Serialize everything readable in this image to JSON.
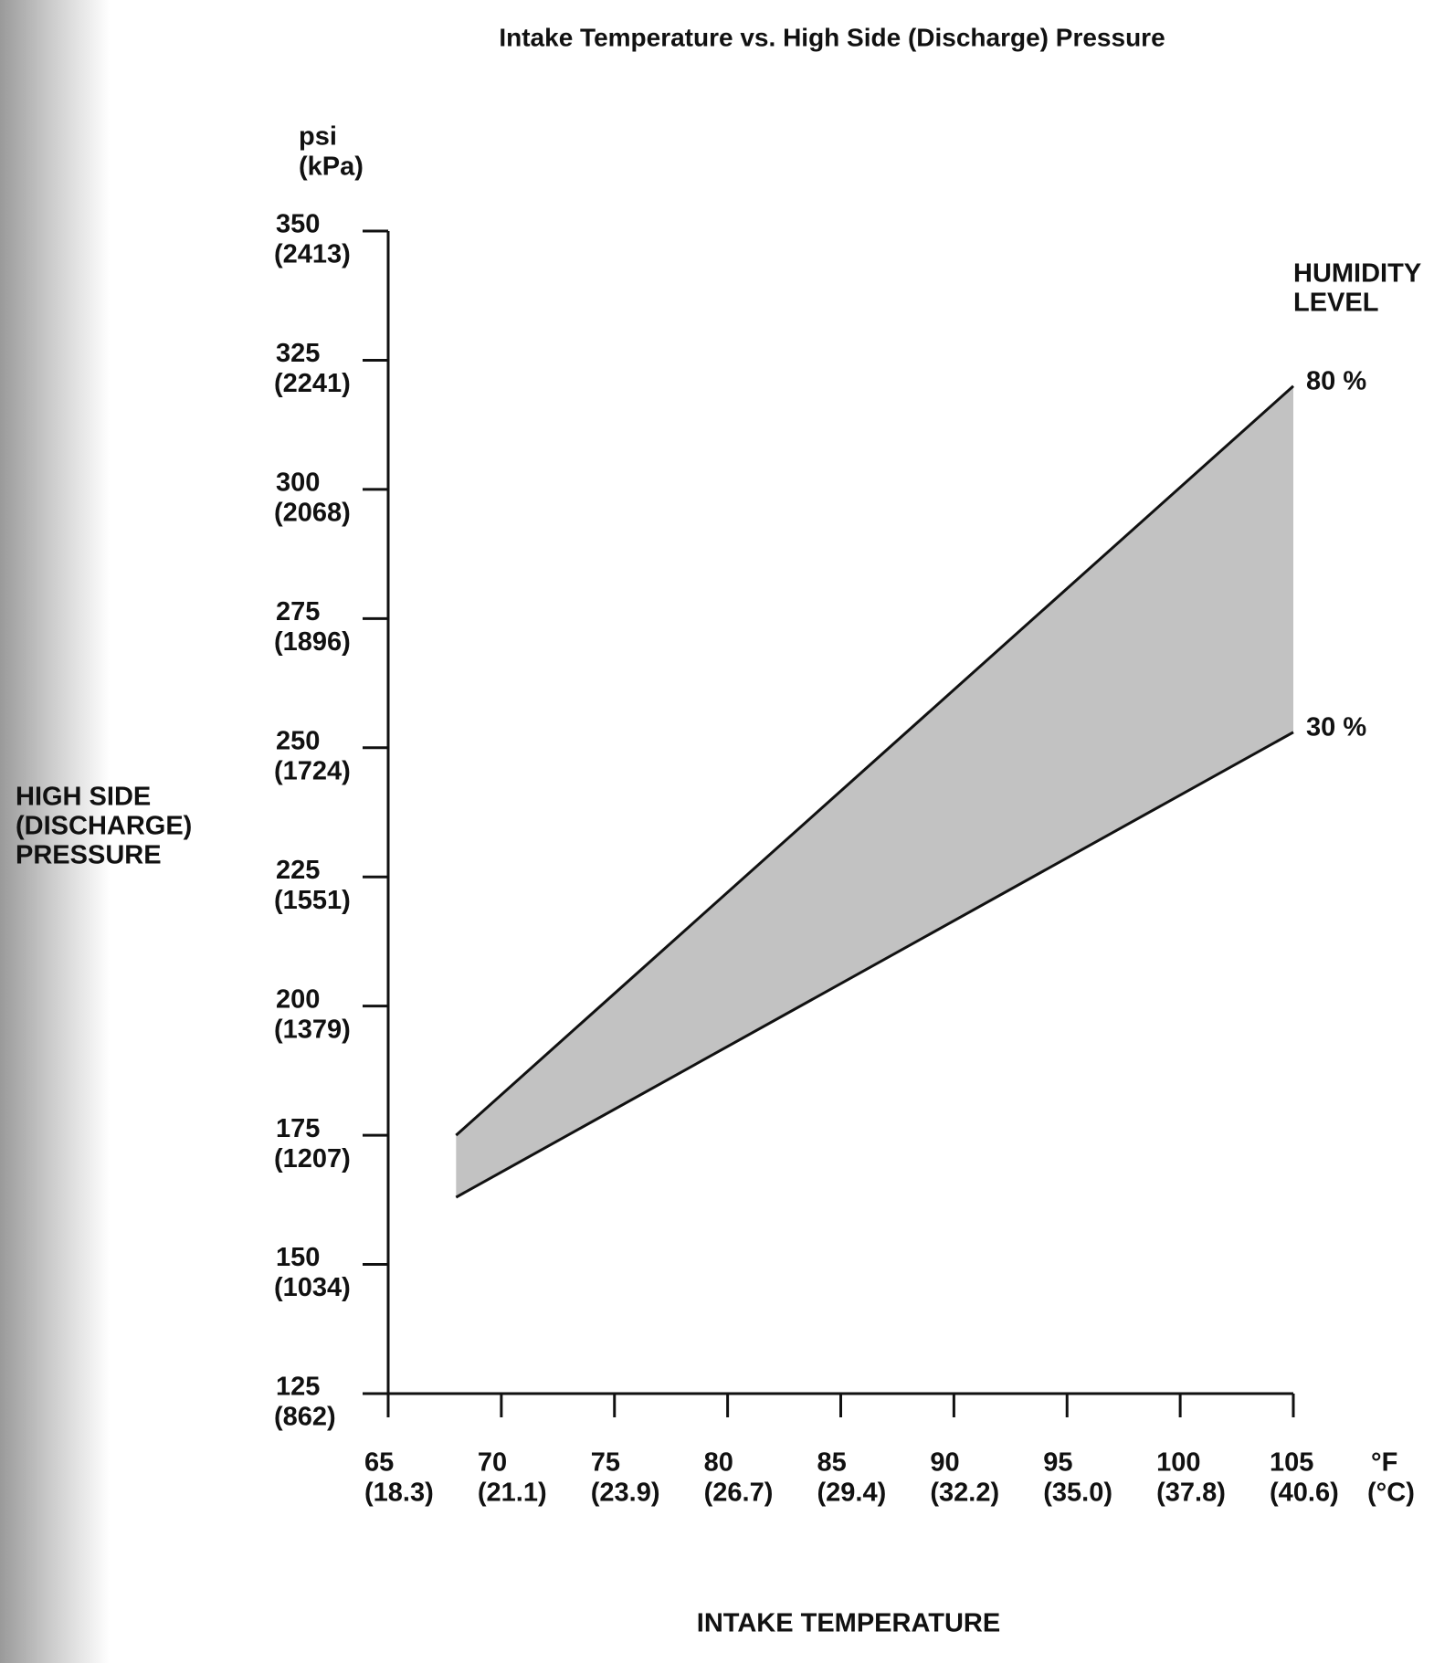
{
  "chart_data": {
    "type": "range_area",
    "title": "Intake Temperature vs. High Side (Discharge) Pressure",
    "xlabel": "INTAKE TEMPERATURE",
    "ylabel": [
      "HIGH SIDE",
      "(DISCHARGE)",
      "PRESSURE"
    ],
    "y_unit": "psi",
    "y_unit_secondary": "(kPa)",
    "x_unit": "°F",
    "x_unit_secondary": "(°C)",
    "legend_title": [
      "HUMIDITY",
      "LEVEL"
    ],
    "x": [
      68,
      105
    ],
    "series": [
      {
        "name": "80 %",
        "color": "#111111",
        "values": [
          175,
          320
        ]
      },
      {
        "name": "30 %",
        "color": "#111111",
        "values": [
          163,
          253
        ]
      }
    ],
    "fill_color": "#c2c2c2",
    "xlim": [
      65,
      105
    ],
    "xticks": [
      65,
      70,
      75,
      80,
      85,
      90,
      95,
      100,
      105
    ],
    "xtick_secondary_labels": [
      "(18.3)",
      "(21.1)",
      "(23.9)",
      "(26.7)",
      "(29.4)",
      "(32.2)",
      "(35.0)",
      "(37.8)",
      "(40.6)"
    ],
    "ylim": [
      125,
      350
    ],
    "yticks": [
      125,
      150,
      175,
      200,
      225,
      250,
      275,
      300,
      325,
      350
    ],
    "ytick_secondary_labels": [
      "(862)",
      "(1034)",
      "(1207)",
      "(1379)",
      "(1551)",
      "(1724)",
      "(1896)",
      "(2068)",
      "(2241)",
      "(2413)"
    ],
    "grid": false
  }
}
